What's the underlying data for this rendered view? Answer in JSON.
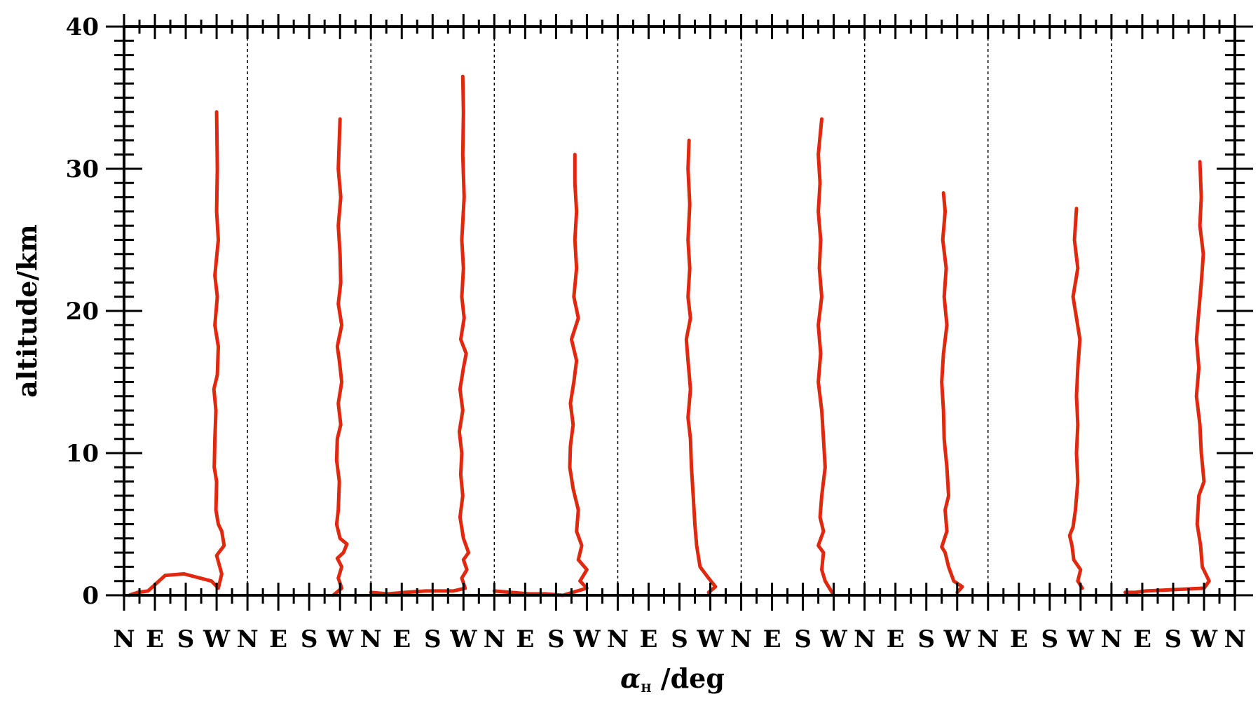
{
  "chart_data": {
    "type": "line",
    "title": "",
    "ylabel": "altitude/km",
    "xlabel_symbol": "α",
    "xlabel_subscript": "H",
    "xlabel_unit": "/deg",
    "ylim": [
      0,
      40
    ],
    "yticks": [
      0,
      10,
      20,
      30,
      40
    ],
    "x_tick_labels": [
      "N",
      "E",
      "S",
      "W",
      "N",
      "E",
      "S",
      "W",
      "N",
      "E",
      "S",
      "W",
      "N",
      "E",
      "S",
      "W",
      "N",
      "E",
      "S",
      "W",
      "N",
      "E",
      "S",
      "W",
      "N",
      "E",
      "S",
      "W",
      "N",
      "E",
      "S",
      "W",
      "N",
      "E",
      "S",
      "W",
      "N"
    ],
    "n_panels": 9,
    "panel_range_deg": [
      0,
      360
    ],
    "line_color": "#e0280f",
    "grid": false,
    "series": [
      {
        "points": [
          [
            15,
            0.0
          ],
          [
            40,
            0.2
          ],
          [
            70,
            0.3
          ],
          [
            120,
            1.4
          ],
          [
            175,
            1.5
          ],
          [
            255,
            1.0
          ],
          [
            275,
            0.5
          ],
          [
            285,
            1.5
          ],
          [
            270,
            2.8
          ],
          [
            292,
            3.5
          ],
          [
            285,
            4.5
          ],
          [
            275,
            5.0
          ],
          [
            268,
            6.0
          ],
          [
            270,
            8.0
          ],
          [
            263,
            9.0
          ],
          [
            265,
            11.0
          ],
          [
            268,
            13.0
          ],
          [
            262,
            14.5
          ],
          [
            272,
            15.5
          ],
          [
            275,
            17.5
          ],
          [
            265,
            19.0
          ],
          [
            272,
            21.0
          ],
          [
            265,
            22.5
          ],
          [
            275,
            25.0
          ],
          [
            270,
            27.0
          ],
          [
            272,
            30.0
          ],
          [
            270,
            34.0
          ]
        ]
      },
      {
        "points": [
          [
            250,
            0.0
          ],
          [
            275,
            0.5
          ],
          [
            265,
            1.2
          ],
          [
            275,
            2.0
          ],
          [
            262,
            2.6
          ],
          [
            280,
            3.0
          ],
          [
            290,
            3.6
          ],
          [
            270,
            4.0
          ],
          [
            260,
            5.0
          ],
          [
            265,
            6.0
          ],
          [
            268,
            8.0
          ],
          [
            260,
            9.5
          ],
          [
            262,
            11.0
          ],
          [
            272,
            12.0
          ],
          [
            265,
            13.5
          ],
          [
            275,
            15.0
          ],
          [
            268,
            16.5
          ],
          [
            262,
            17.5
          ],
          [
            275,
            19.0
          ],
          [
            265,
            20.5
          ],
          [
            272,
            22.0
          ],
          [
            270,
            24.0
          ],
          [
            265,
            26.0
          ],
          [
            272,
            28.0
          ],
          [
            265,
            30.0
          ],
          [
            270,
            33.5
          ]
        ]
      },
      {
        "points": [
          [
            0,
            0.2
          ],
          [
            50,
            0.1
          ],
          [
            100,
            0.2
          ],
          [
            160,
            0.3
          ],
          [
            240,
            0.3
          ],
          [
            275,
            0.5
          ],
          [
            265,
            1.2
          ],
          [
            280,
            1.8
          ],
          [
            270,
            2.5
          ],
          [
            285,
            3.0
          ],
          [
            270,
            4.0
          ],
          [
            260,
            5.5
          ],
          [
            268,
            7.0
          ],
          [
            262,
            8.5
          ],
          [
            265,
            10.0
          ],
          [
            258,
            11.5
          ],
          [
            268,
            13.0
          ],
          [
            260,
            14.5
          ],
          [
            270,
            16.0
          ],
          [
            278,
            17.0
          ],
          [
            262,
            18.0
          ],
          [
            272,
            19.5
          ],
          [
            265,
            21.0
          ],
          [
            270,
            23.0
          ],
          [
            265,
            25.0
          ],
          [
            272,
            28.0
          ],
          [
            268,
            31.0
          ],
          [
            270,
            34.0
          ],
          [
            268,
            36.5
          ]
        ]
      },
      {
        "points": [
          [
            0,
            0.3
          ],
          [
            50,
            0.2
          ],
          [
            100,
            0.1
          ],
          [
            150,
            0.1
          ],
          [
            200,
            0.0
          ],
          [
            270,
            0.5
          ],
          [
            250,
            1.0
          ],
          [
            270,
            1.8
          ],
          [
            245,
            2.5
          ],
          [
            255,
            3.5
          ],
          [
            240,
            4.5
          ],
          [
            245,
            6.0
          ],
          [
            230,
            7.5
          ],
          [
            220,
            9.0
          ],
          [
            222,
            10.5
          ],
          [
            230,
            12.0
          ],
          [
            222,
            13.5
          ],
          [
            232,
            15.0
          ],
          [
            240,
            16.5
          ],
          [
            225,
            18.0
          ],
          [
            245,
            19.5
          ],
          [
            232,
            21.0
          ],
          [
            240,
            23.0
          ],
          [
            235,
            25.0
          ],
          [
            240,
            27.0
          ],
          [
            235,
            29.0
          ],
          [
            235,
            31.0
          ]
        ]
      },
      {
        "points": [
          [
            265,
            0.2
          ],
          [
            285,
            0.6
          ],
          [
            265,
            1.2
          ],
          [
            240,
            2.0
          ],
          [
            230,
            3.5
          ],
          [
            225,
            5.0
          ],
          [
            220,
            7.0
          ],
          [
            215,
            9.0
          ],
          [
            212,
            11.0
          ],
          [
            205,
            12.5
          ],
          [
            212,
            14.5
          ],
          [
            205,
            16.5
          ],
          [
            200,
            18.0
          ],
          [
            212,
            19.5
          ],
          [
            205,
            21.0
          ],
          [
            210,
            23.0
          ],
          [
            205,
            25.0
          ],
          [
            210,
            27.5
          ],
          [
            205,
            30.0
          ],
          [
            208,
            32.0
          ]
        ]
      },
      {
        "points": [
          [
            270,
            0.0
          ],
          [
            245,
            1.0
          ],
          [
            235,
            1.8
          ],
          [
            240,
            3.0
          ],
          [
            225,
            3.5
          ],
          [
            240,
            4.5
          ],
          [
            230,
            5.5
          ],
          [
            235,
            7.0
          ],
          [
            245,
            9.0
          ],
          [
            240,
            11.0
          ],
          [
            235,
            13.0
          ],
          [
            225,
            15.0
          ],
          [
            232,
            17.0
          ],
          [
            225,
            19.0
          ],
          [
            235,
            21.0
          ],
          [
            228,
            23.0
          ],
          [
            232,
            25.0
          ],
          [
            225,
            27.0
          ],
          [
            230,
            29.0
          ],
          [
            225,
            31.0
          ],
          [
            235,
            33.5
          ]
        ]
      },
      {
        "points": [
          [
            270,
            0.2
          ],
          [
            285,
            0.6
          ],
          [
            260,
            1.0
          ],
          [
            245,
            2.0
          ],
          [
            235,
            3.0
          ],
          [
            225,
            3.4
          ],
          [
            240,
            4.5
          ],
          [
            235,
            6.0
          ],
          [
            245,
            7.0
          ],
          [
            240,
            9.0
          ],
          [
            232,
            11.0
          ],
          [
            230,
            13.0
          ],
          [
            225,
            15.0
          ],
          [
            230,
            17.0
          ],
          [
            240,
            19.0
          ],
          [
            232,
            21.0
          ],
          [
            238,
            23.0
          ],
          [
            228,
            25.0
          ],
          [
            235,
            27.0
          ],
          [
            230,
            28.3
          ]
        ]
      },
      {
        "points": [
          [
            275,
            0.5
          ],
          [
            262,
            1.0
          ],
          [
            270,
            1.8
          ],
          [
            250,
            2.5
          ],
          [
            245,
            3.5
          ],
          [
            238,
            4.2
          ],
          [
            248,
            4.8
          ],
          [
            255,
            6.0
          ],
          [
            262,
            8.0
          ],
          [
            258,
            10.0
          ],
          [
            262,
            12.0
          ],
          [
            258,
            14.0
          ],
          [
            262,
            16.0
          ],
          [
            268,
            18.0
          ],
          [
            258,
            19.5
          ],
          [
            248,
            21.0
          ],
          [
            262,
            23.0
          ],
          [
            252,
            25.0
          ],
          [
            258,
            27.2
          ]
        ]
      },
      {
        "points": [
          [
            40,
            0.2
          ],
          [
            70,
            0.2
          ],
          [
            100,
            0.3
          ],
          [
            270,
            0.5
          ],
          [
            285,
            1.0
          ],
          [
            265,
            2.0
          ],
          [
            260,
            3.5
          ],
          [
            250,
            5.0
          ],
          [
            255,
            7.0
          ],
          [
            270,
            8.0
          ],
          [
            262,
            10.0
          ],
          [
            258,
            12.0
          ],
          [
            248,
            14.0
          ],
          [
            255,
            16.0
          ],
          [
            248,
            18.0
          ],
          [
            255,
            20.0
          ],
          [
            262,
            22.0
          ],
          [
            268,
            24.0
          ],
          [
            258,
            26.0
          ],
          [
            262,
            28.0
          ],
          [
            258,
            30.5
          ]
        ]
      }
    ]
  }
}
